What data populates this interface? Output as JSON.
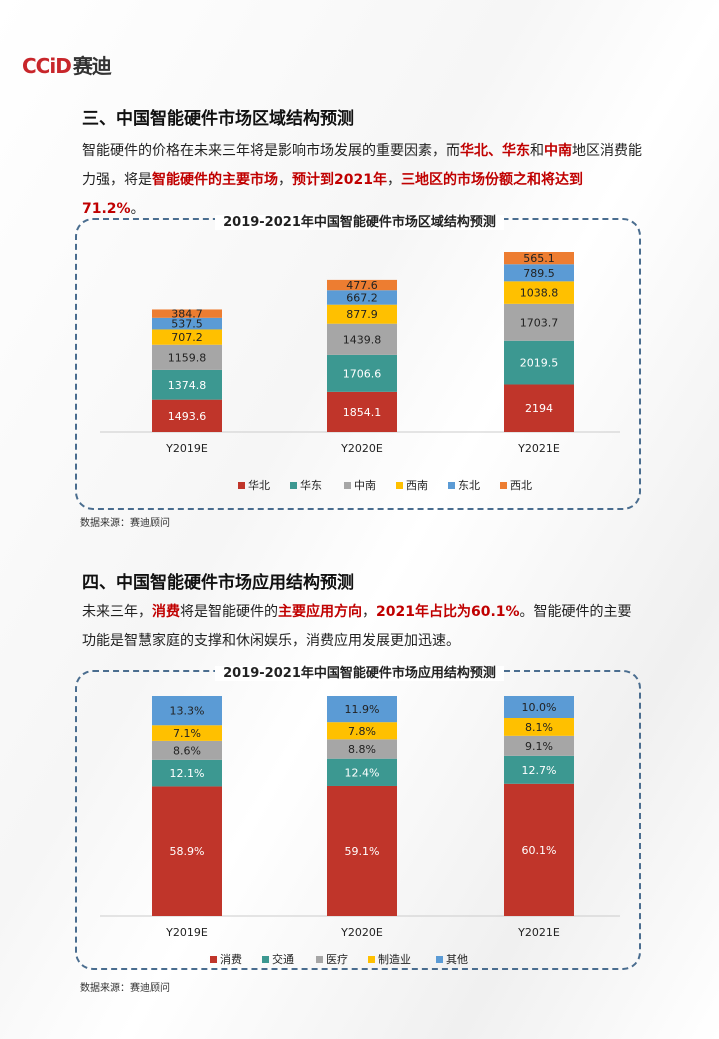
{
  "logo": {
    "text_en": "CCiD",
    "text_cn": "赛迪"
  },
  "section3": {
    "heading": "三、中国智能硬件市场区域结构预测",
    "para": [
      {
        "t": "智能硬件的价格在未来三年将是影响市场发展的重要因素，而"
      },
      {
        "t": "华北、华东",
        "r": true
      },
      {
        "t": "和"
      },
      {
        "t": "中南",
        "r": true
      },
      {
        "t": "地区消费能力强，将是"
      },
      {
        "t": "智能硬件的主要市场",
        "r": true
      },
      {
        "t": "，"
      },
      {
        "t": "预计到2021年",
        "r": true
      },
      {
        "t": "，"
      },
      {
        "t": "三地区的市场份额之和将达到71.2%",
        "r": true
      },
      {
        "t": "。"
      }
    ],
    "source": "数据来源：赛迪顾问"
  },
  "section4": {
    "heading": "四、中国智能硬件市场应用结构预测",
    "para": [
      {
        "t": "未来三年，"
      },
      {
        "t": "消费",
        "r": true
      },
      {
        "t": "将是智能硬件的"
      },
      {
        "t": "主要应用方向",
        "r": true
      },
      {
        "t": "，"
      },
      {
        "t": "2021年占比为60.1%",
        "r": true
      },
      {
        "t": "。智能硬件的主要功能是智慧家庭的支撑和休闲娱乐，消费应用发展更加迅速。"
      }
    ],
    "source": "数据来源：赛迪顾问"
  },
  "chart_data": [
    {
      "type": "bar",
      "stacked": true,
      "title": "2019-2021年中国智能硬件市场区域结构预测",
      "categories": [
        "Y2019E",
        "Y2020E",
        "Y2021E"
      ],
      "series": [
        {
          "name": "华北",
          "color": "#c0352a",
          "values": [
            1493.6,
            1854.1,
            2194.0
          ]
        },
        {
          "name": "华东",
          "color": "#3c9891",
          "values": [
            1374.8,
            1706.6,
            2019.5
          ]
        },
        {
          "name": "中南",
          "color": "#a6a6a6",
          "values": [
            1159.8,
            1439.8,
            1703.7
          ]
        },
        {
          "name": "西南",
          "color": "#ffc000",
          "values": [
            707.2,
            877.9,
            1038.8
          ]
        },
        {
          "name": "东北",
          "color": "#5b9bd5",
          "values": [
            537.5,
            667.2,
            789.5
          ]
        },
        {
          "name": "西北",
          "color": "#ed7d31",
          "values": [
            384.7,
            477.6,
            565.1
          ]
        }
      ],
      "legend": "bottom",
      "grid": false
    },
    {
      "type": "bar",
      "stacked": true,
      "percent": true,
      "title": "2019-2021年中国智能硬件市场应用结构预测",
      "categories": [
        "Y2019E",
        "Y2020E",
        "Y2021E"
      ],
      "series": [
        {
          "name": "消费",
          "color": "#c0352a",
          "values": [
            "58.9%",
            "59.1%",
            "60.1%"
          ]
        },
        {
          "name": "交通",
          "color": "#3c9891",
          "values": [
            "12.1%",
            "12.4%",
            "12.7%"
          ]
        },
        {
          "name": "医疗",
          "color": "#a6a6a6",
          "values": [
            "8.6%",
            "8.8%",
            "9.1%"
          ]
        },
        {
          "name": "制造业",
          "color": "#ffc000",
          "values": [
            "7.1%",
            "7.8%",
            "8.1%"
          ]
        },
        {
          "name": "其他",
          "color": "#5b9bd5",
          "values": [
            "13.3%",
            "11.9%",
            "10.0%"
          ]
        }
      ],
      "legend": "bottom",
      "grid": false
    }
  ]
}
